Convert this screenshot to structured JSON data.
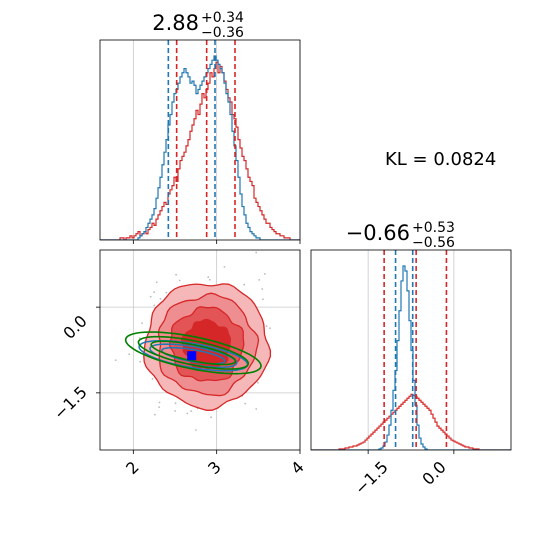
{
  "chart_data": {
    "type": "corner",
    "colors": {
      "posterior_a": "#d62728",
      "posterior_b": "#1f77b4",
      "reference": "#008000",
      "marker": "#0000ff"
    },
    "annotation": {
      "label": "KL = 0.0824"
    },
    "param1": {
      "title": {
        "median": "2.88",
        "upper": "+0.34",
        "lower": "−0.36"
      },
      "range": [
        1.6,
        4.0
      ],
      "ticks": [
        2,
        3,
        4
      ],
      "tick_labels": [
        "2",
        "3",
        "4"
      ],
      "quantiles_red": [
        2.52,
        2.88,
        3.22
      ],
      "quantiles_blue": [
        2.42,
        2.98
      ],
      "hist_red": [
        0,
        0,
        0,
        0,
        0,
        0,
        0,
        0,
        0,
        0,
        1,
        1,
        0,
        1,
        1,
        2,
        1,
        2,
        3,
        4,
        2,
        3,
        4,
        3,
        5,
        6,
        8,
        7,
        10,
        12,
        14,
        16,
        18,
        17,
        22,
        24,
        26,
        30,
        28,
        34,
        38,
        40,
        42,
        45,
        48,
        52,
        55,
        58,
        62,
        60,
        65,
        70,
        68,
        72,
        75,
        80,
        78,
        82,
        85,
        80,
        83,
        80,
        76,
        72,
        68,
        66,
        60,
        58,
        54,
        48,
        44,
        40,
        38,
        34,
        30,
        28,
        26,
        20,
        18,
        16,
        14,
        12,
        10,
        8,
        8,
        6,
        5,
        4,
        3,
        3,
        2,
        2,
        1,
        1,
        1,
        0,
        0,
        0,
        0,
        0
      ],
      "hist_blue": [
        0,
        0,
        0,
        0,
        0,
        0,
        0,
        0,
        0,
        0,
        0,
        0,
        0,
        0,
        0,
        0,
        0,
        0,
        0,
        1,
        2,
        3,
        4,
        6,
        8,
        10,
        12,
        15,
        20,
        25,
        30,
        36,
        42,
        48,
        55,
        60,
        66,
        70,
        72,
        75,
        78,
        80,
        82,
        80,
        78,
        75,
        76,
        74,
        70,
        72,
        74,
        76,
        78,
        80,
        82,
        84,
        86,
        88,
        86,
        84,
        82,
        80,
        75,
        70,
        66,
        60,
        52,
        45,
        38,
        30,
        22,
        16,
        12,
        8,
        6,
        4,
        3,
        2,
        1,
        1,
        0,
        0,
        0,
        0,
        0,
        0,
        0,
        0,
        0,
        0,
        0,
        0,
        0,
        0,
        0,
        0,
        0,
        0,
        0,
        0
      ]
    },
    "param2": {
      "title": {
        "median": "−0.66",
        "upper": "+0.53",
        "lower": "−0.56"
      },
      "range": [
        -2.5,
        1.0
      ],
      "ticks": [
        -1.5,
        0.0
      ],
      "tick_labels": [
        "−1.5",
        "0.0"
      ],
      "quantiles_red": [
        -1.22,
        -0.66,
        -0.13
      ],
      "quantiles_blue": [
        -1.02,
        -0.72
      ],
      "hist_red": [
        0,
        0,
        0,
        0,
        0,
        0,
        0,
        0,
        0,
        0,
        0,
        0,
        0,
        0,
        1,
        1,
        1,
        2,
        2,
        3,
        3,
        4,
        4,
        5,
        6,
        7,
        8,
        10,
        12,
        14,
        16,
        18,
        20,
        22,
        24,
        26,
        28,
        30,
        32,
        34,
        36,
        38,
        40,
        42,
        44,
        46,
        48,
        50,
        52,
        54,
        56,
        55,
        54,
        52,
        50,
        48,
        46,
        44,
        42,
        40,
        36,
        32,
        28,
        24,
        22,
        20,
        18,
        16,
        14,
        12,
        10,
        9,
        8,
        7,
        6,
        5,
        4,
        3,
        3,
        2,
        2,
        1,
        1,
        1,
        0,
        0,
        0,
        0,
        0,
        0,
        0,
        0,
        0,
        0,
        0,
        0,
        0,
        0,
        0,
        0
      ],
      "hist_blue": [
        0,
        0,
        0,
        0,
        0,
        0,
        0,
        0,
        0,
        0,
        0,
        0,
        0,
        0,
        0,
        0,
        0,
        0,
        0,
        0,
        0,
        0,
        0,
        0,
        0,
        0,
        0,
        0,
        0,
        0,
        0,
        0,
        0,
        0,
        1,
        2,
        4,
        8,
        15,
        25,
        40,
        60,
        80,
        110,
        140,
        170,
        185,
        180,
        160,
        130,
        100,
        70,
        45,
        25,
        12,
        6,
        3,
        1,
        0,
        0,
        0,
        0,
        0,
        0,
        0,
        0,
        0,
        0,
        0,
        0,
        0,
        0,
        0,
        0,
        0,
        0,
        0,
        0,
        0,
        0,
        0,
        0,
        0,
        0,
        0,
        0,
        0,
        0,
        0,
        0,
        0,
        0,
        0,
        0,
        0,
        0,
        0,
        0,
        0,
        0
      ]
    },
    "joint": {
      "x_range": [
        1.6,
        4.0
      ],
      "y_range": [
        -2.5,
        1.0
      ],
      "x_ticks": [
        2,
        3,
        4
      ],
      "y_ticks": [
        0.0,
        -1.5
      ],
      "y_tick_labels": [
        "0.0",
        "−1.5"
      ],
      "red_center": [
        2.88,
        -0.66
      ],
      "red_levels_sigma": [
        0.33,
        0.6,
        0.85
      ],
      "blue_center": [
        2.72,
        -0.85
      ],
      "green_center": [
        2.72,
        -0.8
      ],
      "marker": [
        2.7,
        -0.85
      ]
    }
  }
}
